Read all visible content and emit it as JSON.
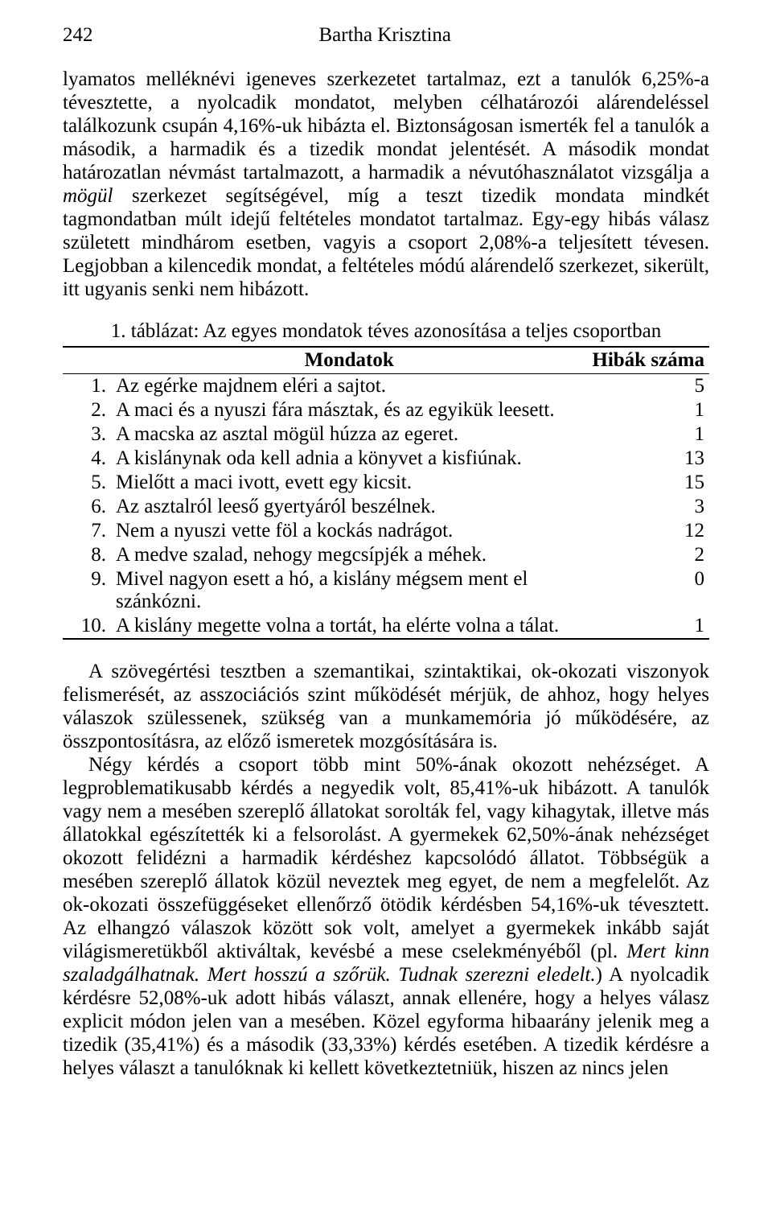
{
  "page_number": "242",
  "author": "Bartha Krisztina",
  "typography": {
    "font_family": "Times New Roman",
    "body_fontsize_pt": 12,
    "color_text": "#000000",
    "color_bg": "#ffffff",
    "color_rule": "#000000"
  },
  "paragraph1_a": "lyamatos melléknévi igeneves szerkezetet tartalmaz, ezt a tanulók 6,25%-a tévesztette, a nyolcadik mondatot, melyben célhatározói alárendeléssel találkozunk csupán 4,16%-uk hibázta el. Biztonságosan ismerték fel a tanulók a második, a harmadik és a tizedik mondat jelentését. A második mondat határozatlan névmást tartalmazott, a harmadik a névutóhasználatot vizsgálja a ",
  "paragraph1_i1": "mögül",
  "paragraph1_b": " szerkezet segítségével, míg a teszt tizedik mondata mindkét tagmondatban múlt idejű feltételes mondatot tartalmaz. Egy-egy hibás válasz született mindhárom esetben, vagyis a csoport 2,08%-a teljesített tévesen. Legjobban a kilencedik mondat, a feltételes módú alárendelő szerkezet, sikerült, itt ugyanis senki nem hibázott.",
  "table": {
    "caption": "1. táblázat: Az egyes mondatok téves azonosítása a teljes csoportban",
    "columns": {
      "sentences": "Mondatok",
      "errors": "Hibák száma"
    },
    "rows": [
      {
        "n": "1.",
        "sentence": "Az egérke majdnem eléri a sajtot.",
        "errors": "5"
      },
      {
        "n": "2.",
        "sentence": "A maci és a nyuszi fára másztak, és az egyikük leesett.",
        "errors": "1"
      },
      {
        "n": "3.",
        "sentence": "A macska az asztal mögül húzza az egeret.",
        "errors": "1"
      },
      {
        "n": "4.",
        "sentence": "A kislánynak oda kell adnia a könyvet a kisfiúnak.",
        "errors": "13"
      },
      {
        "n": "5.",
        "sentence": "Mielőtt a maci ivott, evett egy kicsit.",
        "errors": "15"
      },
      {
        "n": "6.",
        "sentence": "Az asztalról leeső gyertyáról beszélnek.",
        "errors": "3"
      },
      {
        "n": "7.",
        "sentence": "Nem a nyuszi vette föl a kockás nadrágot.",
        "errors": "12"
      },
      {
        "n": "8.",
        "sentence": "A medve szalad, nehogy megcsípjék a méhek.",
        "errors": "2"
      },
      {
        "n": "9.",
        "sentence": "Mivel nagyon esett a hó, a kislány mégsem ment el szánkózni.",
        "errors": "0"
      },
      {
        "n": "10.",
        "sentence": "A kislány megette volna a tortát, ha elérte volna a tálat.",
        "errors": "1"
      }
    ]
  },
  "paragraph2": "A szövegértési tesztben a szemantikai, szintaktikai, ok-okozati viszonyok felismerését, az asszociációs szint működését mérjük, de ahhoz, hogy helyes válaszok szülessenek, szükség van a munkamemória jó működésére, az összpontosításra, az előző ismeretek mozgósítására is.",
  "paragraph3_a": "Négy kérdés a csoport több mint 50%-ának okozott nehézséget. A legproblematikusabb kérdés a negyedik volt, 85,41%-uk hibázott. A tanulók vagy nem a mesében szereplő állatokat sorolták fel, vagy kihagytak, illetve más állatokkal egészítették ki a felsorolást. A gyermekek 62,50%-ának nehézséget okozott felidézni a harmadik kérdéshez kapcsolódó állatot. Többségük a mesében szereplő állatok közül neveztek meg egyet, de nem a megfelelőt. Az ok-okozati összefüggéseket ellenőrző ötödik kérdésben 54,16%-uk tévesztett. Az elhangzó válaszok között sok volt, amelyet a gyermekek inkább saját világismeretükből aktiváltak, kevésbé a mese cselekményéből (pl. ",
  "paragraph3_i1": "Mert kinn szaladgálhatnak. Mert hosszú a szőrük. Tudnak szerezni eledelt.",
  "paragraph3_b": ") A nyolcadik kérdésre 52,08%-uk adott hibás választ, annak ellenére, hogy a helyes válasz explicit módon jelen van a mesében. Közel egyforma hibaarány jelenik meg a tizedik (35,41%) és a második (33,33%) kérdés esetében. A tizedik kérdésre a helyes választ a tanulóknak ki kellett következtetniük, hiszen az nincs jelen"
}
